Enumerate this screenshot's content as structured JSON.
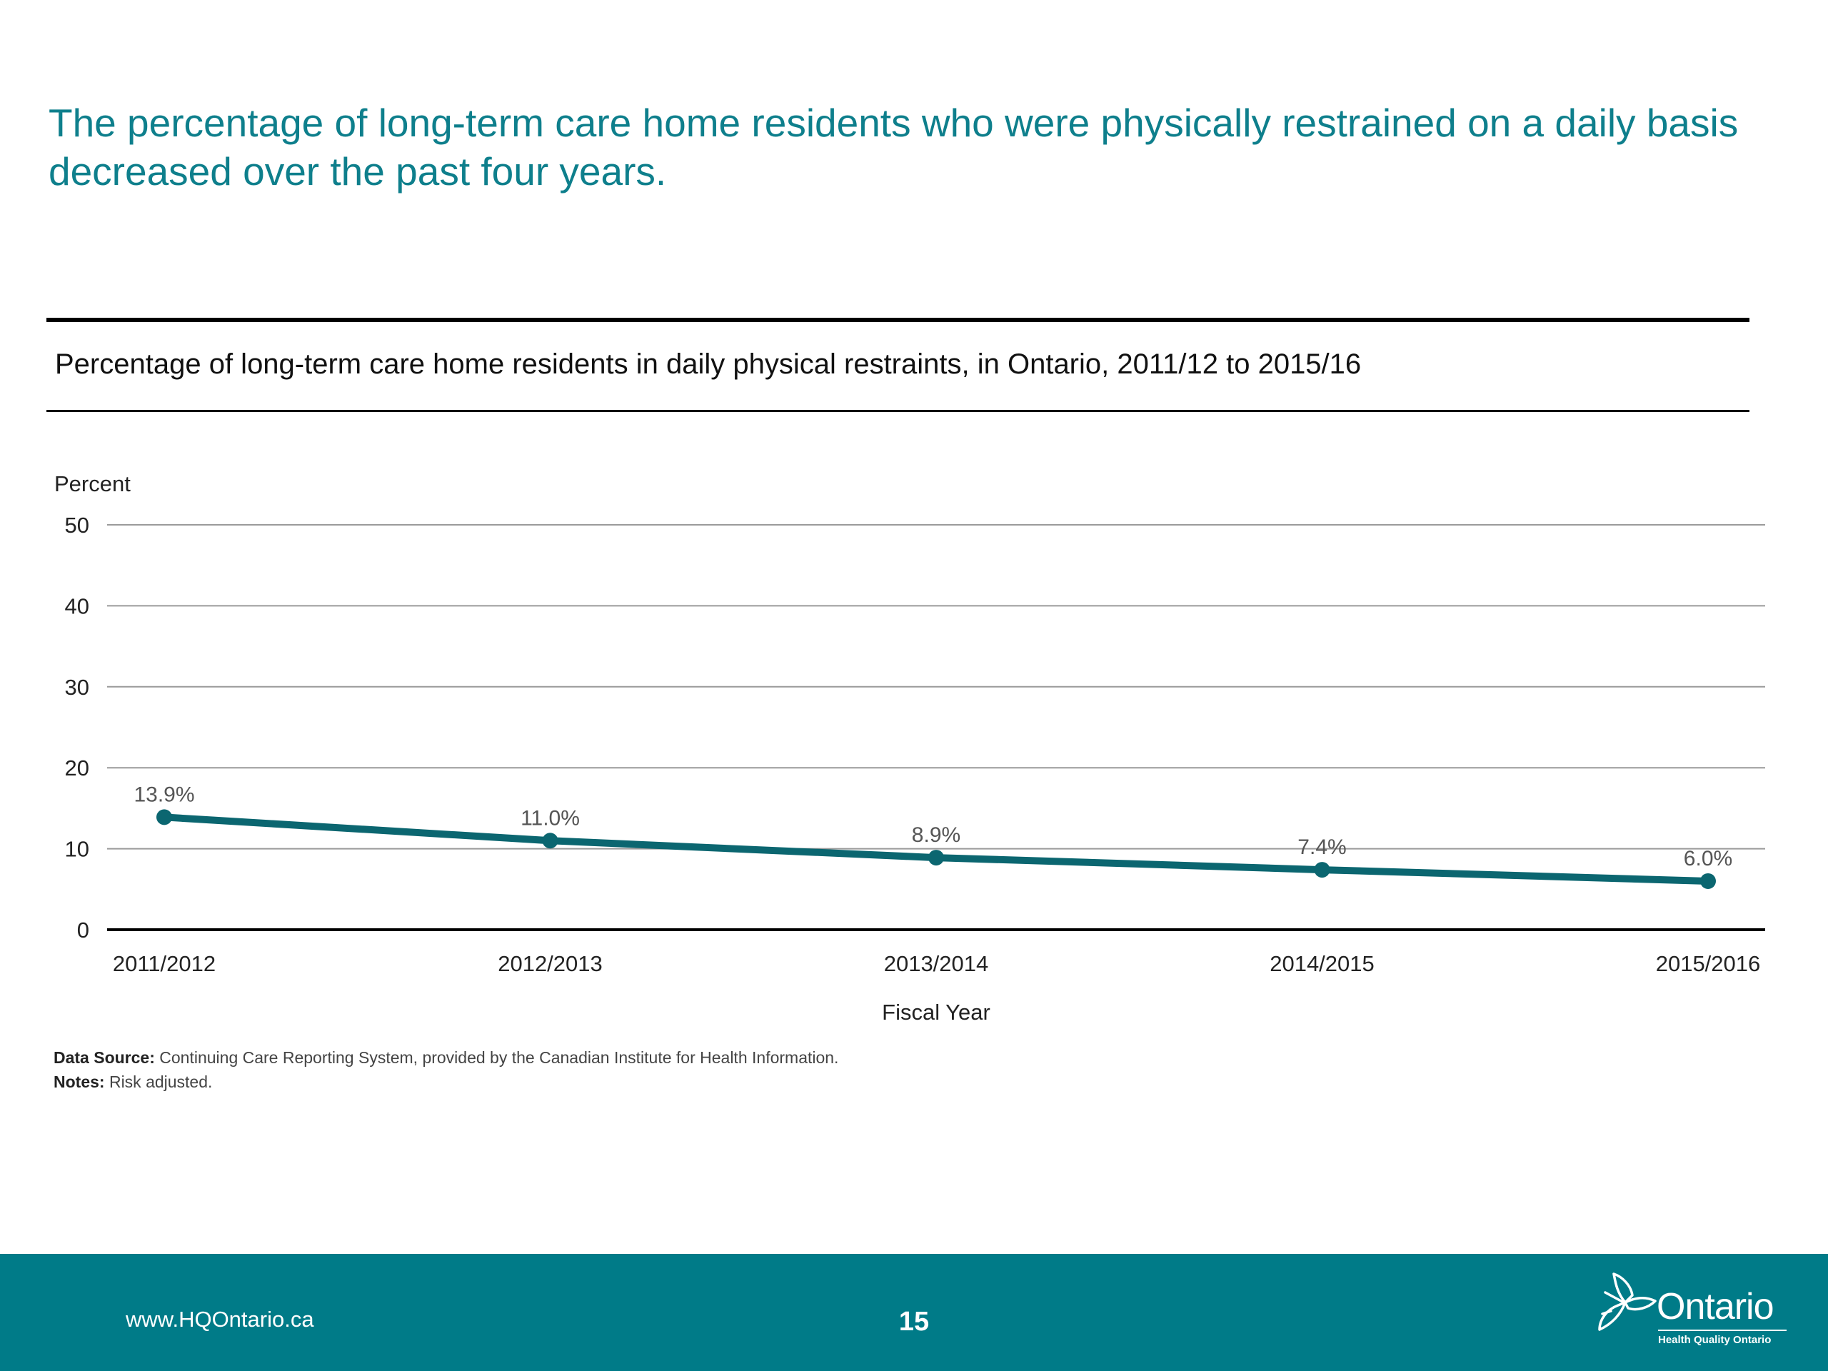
{
  "headline": "The percentage of long-term care home residents who were physically restrained on a daily basis decreased over the past four years.",
  "footnotes": {
    "source_label": "Data Source:",
    "source_text": " Continuing Care Reporting System, provided by the Canadian Institute for Health Information.",
    "notes_label": "Notes:",
    "notes_text": " Risk adjusted."
  },
  "footer": {
    "url": "www.HQOntario.ca",
    "page_number": "15",
    "logo_wordmark": "Ontario",
    "logo_subtitle": "Health Quality Ontario",
    "logo_icon": "trillium-icon",
    "background_color": "#007b88"
  },
  "colors": {
    "headline": "#0e7f8c",
    "series_line": "#0b6670",
    "gridline": "#9a9a9a",
    "baseline": "#000000"
  },
  "chart_data": {
    "type": "line",
    "title": "Percentage of long-term care home residents in daily physical restraints, in Ontario, 2011/12 to 2015/16",
    "xlabel": "Fiscal Year",
    "ylabel": "Percent",
    "categories": [
      "2011/2012",
      "2012/2013",
      "2013/2014",
      "2014/2015",
      "2015/2016"
    ],
    "values": [
      13.9,
      11.0,
      8.9,
      7.4,
      6.0
    ],
    "data_labels": [
      "13.9%",
      "11.0%",
      "8.9%",
      "7.4%",
      "6.0%"
    ],
    "ylim": [
      0,
      50
    ],
    "yticks": [
      "0",
      "10",
      "20",
      "30",
      "40",
      "50"
    ],
    "grid": true,
    "legend": "none"
  }
}
